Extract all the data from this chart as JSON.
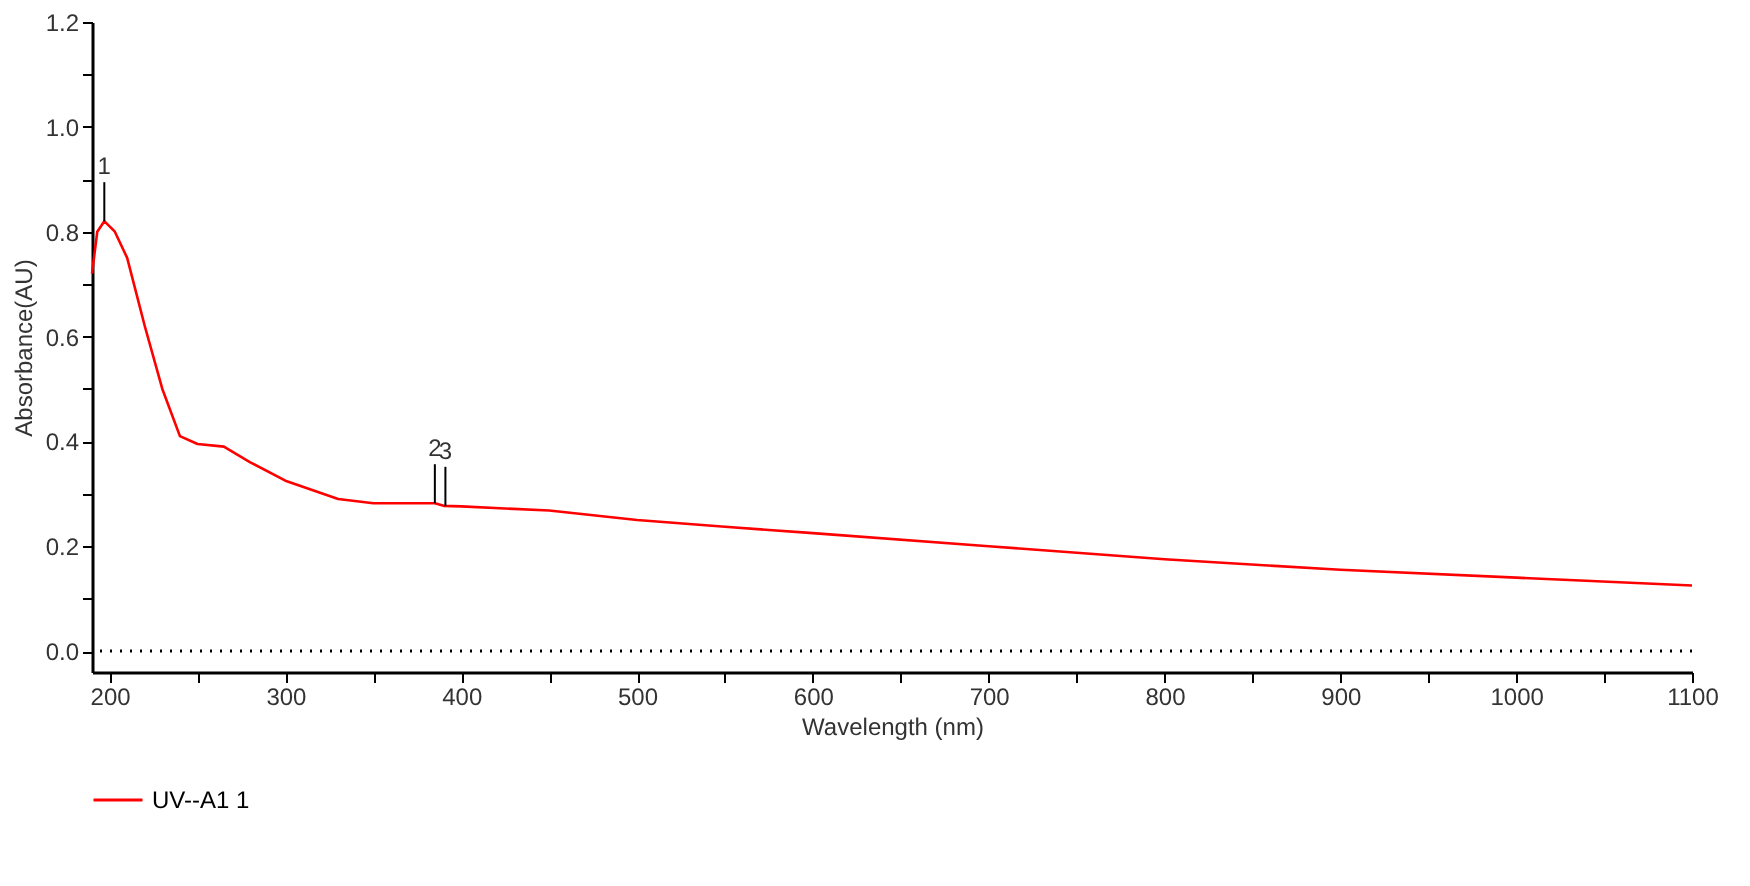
{
  "chart_data": {
    "type": "line",
    "xlabel": "Wavelength (nm)",
    "ylabel": "Absorbance(AU)",
    "xlim": [
      190,
      1100
    ],
    "ylim": [
      -0.04,
      1.2
    ],
    "xticks": [
      200,
      {
        "value": 250,
        "label": null
      },
      300,
      {
        "value": 350,
        "label": null
      },
      400,
      {
        "value": 450,
        "label": null
      },
      500,
      {
        "value": 550,
        "label": null
      },
      600,
      {
        "value": 650,
        "label": null
      },
      700,
      {
        "value": 750,
        "label": null
      },
      800,
      {
        "value": 850,
        "label": null
      },
      900,
      {
        "value": 950,
        "label": null
      },
      1000,
      {
        "value": 1050,
        "label": null
      },
      1100
    ],
    "yticks": [
      {
        "value": 0,
        "label": "0.0"
      },
      {
        "value": 0.1,
        "label": null
      },
      0.2,
      {
        "value": 0.3,
        "label": null
      },
      0.4,
      {
        "value": 0.5,
        "label": null
      },
      0.6,
      {
        "value": 0.7,
        "label": null
      },
      0.8,
      {
        "value": 0.9,
        "label": null
      },
      {
        "value": 1,
        "label": "1.0"
      },
      {
        "value": 1.1,
        "label": null
      },
      1.2
    ],
    "x": [
      190,
      193,
      197,
      203,
      210,
      220,
      230,
      240,
      250,
      265,
      280,
      300,
      330,
      350,
      385,
      390,
      400,
      450,
      500,
      550,
      600,
      700,
      800,
      900,
      1000,
      1100
    ],
    "series": [
      {
        "name": "UV--A1 1",
        "color": "#ff0000",
        "values": [
          0.72,
          0.8,
          0.82,
          0.8,
          0.75,
          0.62,
          0.5,
          0.41,
          0.395,
          0.39,
          0.36,
          0.325,
          0.29,
          0.282,
          0.282,
          0.277,
          0.276,
          0.268,
          0.25,
          0.237,
          0.225,
          0.2,
          0.175,
          0.155,
          0.14,
          0.125
        ]
      }
    ],
    "annotations": [
      {
        "text": "1",
        "x": 197,
        "y": 0.82
      },
      {
        "text": "2",
        "x": 385,
        "y": 0.282
      },
      {
        "text": "3",
        "x": 391,
        "y": 0.277
      }
    ],
    "ref_lines": [
      {
        "axis": "y",
        "value": 0,
        "color": "#000000",
        "line_style": "dotted"
      }
    ],
    "grid": false,
    "legend": "bottom",
    "line_style": "solid",
    "marker": "none"
  }
}
